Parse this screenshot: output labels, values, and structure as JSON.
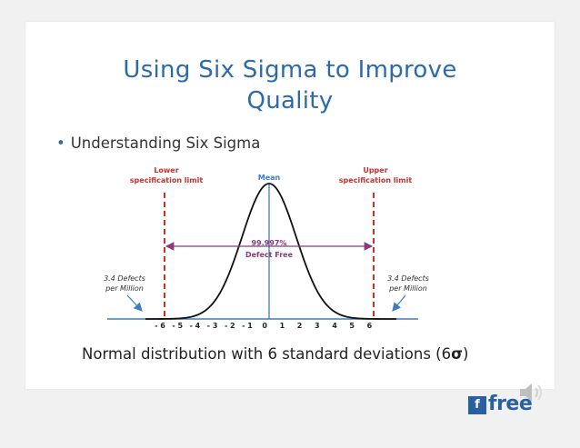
{
  "slide": {
    "title_line1": "Using Six Sigma to Improve",
    "title_line2": "Quality",
    "bullet": "Understanding Six Sigma",
    "caption_prefix": "Normal distribution with 6 standard deviations (6",
    "caption_symbol": "σ",
    "caption_suffix": ")"
  },
  "diagram": {
    "lower_spec_line1": "Lower",
    "lower_spec_line2": "specification limit",
    "upper_spec_line1": "Upper",
    "upper_spec_line2": "specification limit",
    "mean_label": "Mean",
    "defect_free_pct": "99.997%",
    "defect_free_label": "Defect Free",
    "left_defects_line1": "3.4 Defects",
    "left_defects_line2": "per Million",
    "right_defects_line1": "3.4 Defects",
    "right_defects_line2": "per Million",
    "axis_ticks": [
      "- 6",
      "- 5",
      "- 4",
      "- 3",
      "- 2",
      "- 1",
      "0",
      "1",
      "2",
      "3",
      "4",
      "5",
      "6"
    ]
  },
  "logo": {
    "text": "free",
    "box_glyph": "f"
  },
  "colors": {
    "title": "#2e6aa8",
    "annotation_red": "#c8302b",
    "axis_blue": "#3b7cc4",
    "arrow_purple": "#8a3a7a"
  }
}
